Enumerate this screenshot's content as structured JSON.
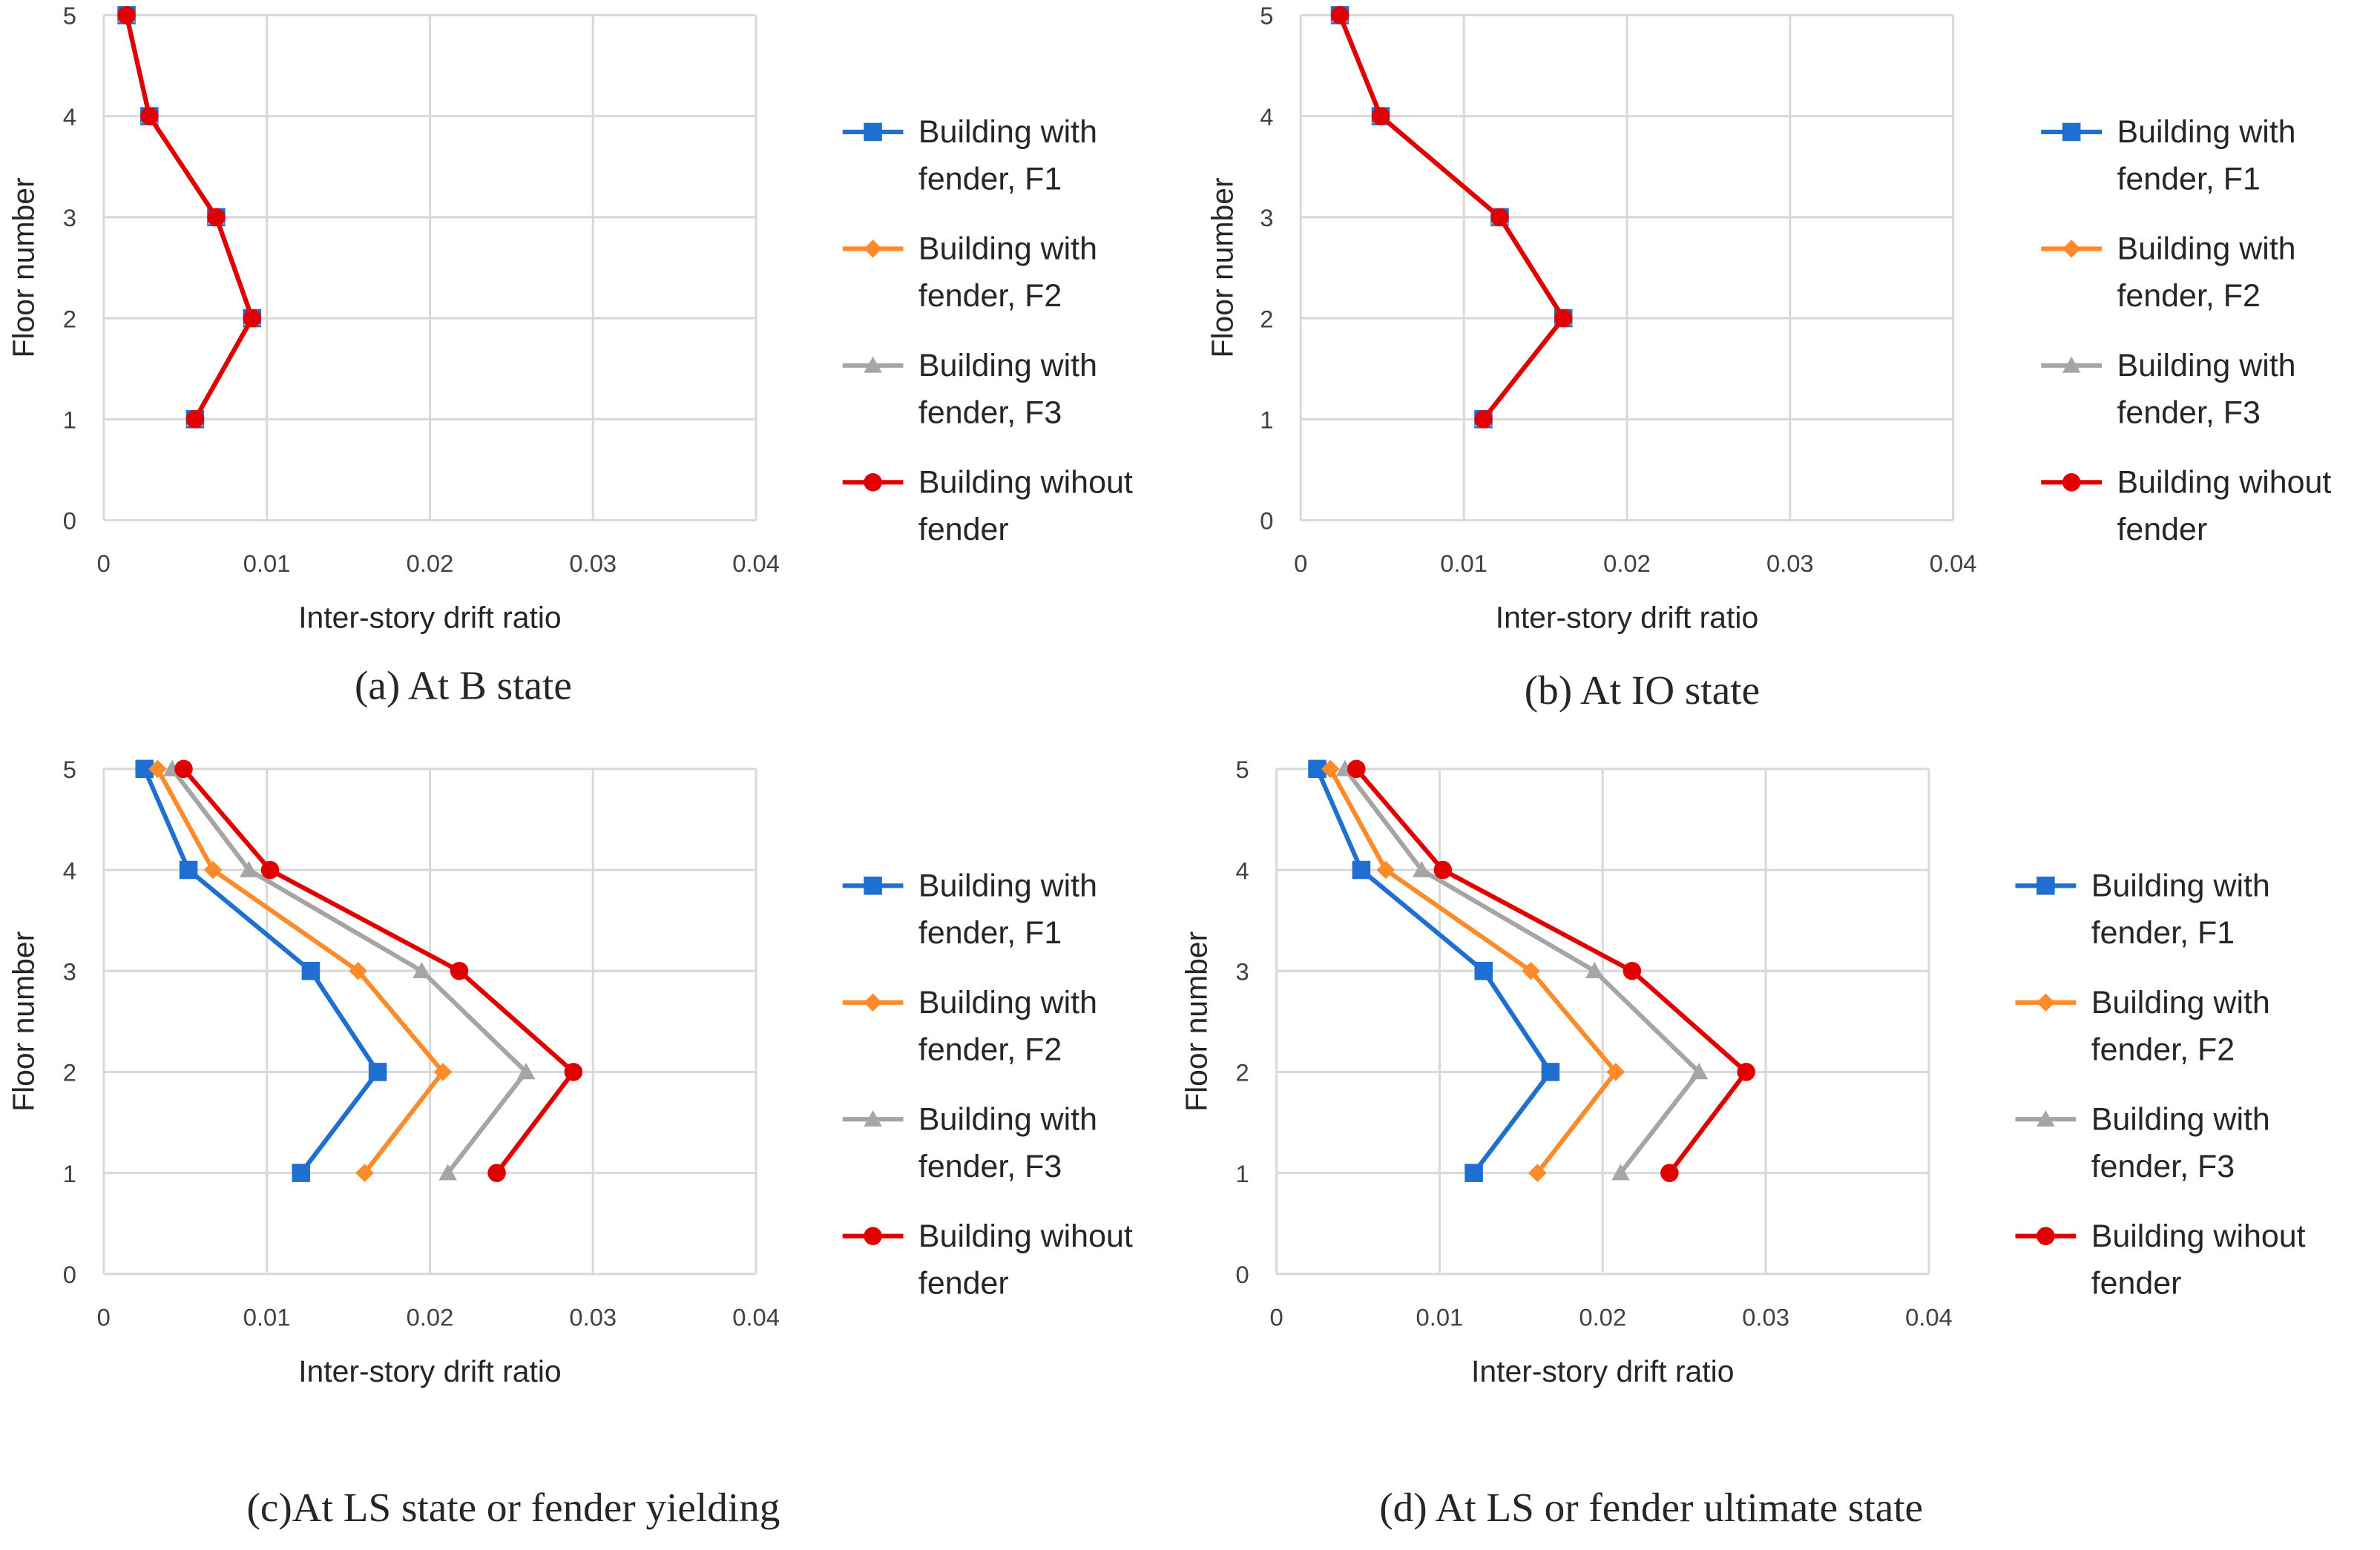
{
  "chart_data": [
    {
      "type": "line",
      "caption": "(a) At B state",
      "xlabel": "Inter-story drift ratio",
      "ylabel": "Floor number",
      "xlim": [
        0,
        0.04
      ],
      "ylim": [
        0,
        5
      ],
      "xticks": [
        "0",
        "0.01",
        "0.02",
        "0.03",
        "0.04"
      ],
      "yticks": [
        "0",
        "1",
        "2",
        "3",
        "4",
        "5"
      ],
      "grid": true,
      "legend": "right",
      "y": [
        1,
        2,
        3,
        4,
        5
      ],
      "series": [
        {
          "name": "Building with fender, F1",
          "lines": [
            "Building with",
            "fender, F1"
          ],
          "color": "#1f6fd0",
          "marker": "square",
          "x": [
            0.0056,
            0.0091,
            0.0069,
            0.0028,
            0.0014
          ]
        },
        {
          "name": "Building with fender, F2",
          "lines": [
            "Building with",
            "fender, F2"
          ],
          "color": "#ff8a2a",
          "marker": "diamond",
          "x": [
            0.0056,
            0.0091,
            0.0069,
            0.0028,
            0.0014
          ]
        },
        {
          "name": "Building with fender, F3",
          "lines": [
            "Building with",
            "fender, F3"
          ],
          "color": "#a5a5a5",
          "marker": "triangle",
          "x": [
            0.0056,
            0.0091,
            0.0069,
            0.0028,
            0.0014
          ]
        },
        {
          "name": "Building wihout fender",
          "lines": [
            "Building wihout",
            "fender"
          ],
          "color": "#e00000",
          "marker": "circle",
          "x": [
            0.0056,
            0.0091,
            0.0069,
            0.0028,
            0.0014
          ]
        }
      ]
    },
    {
      "type": "line",
      "caption": "(b) At IO state",
      "xlabel": "Inter-story drift ratio",
      "ylabel": "Floor number",
      "xlim": [
        0,
        0.04
      ],
      "ylim": [
        0,
        5
      ],
      "xticks": [
        "0",
        "0.01",
        "0.02",
        "0.03",
        "0.04"
      ],
      "yticks": [
        "0",
        "1",
        "2",
        "3",
        "4",
        "5"
      ],
      "grid": true,
      "legend": "right",
      "y": [
        1,
        2,
        3,
        4,
        5
      ],
      "series": [
        {
          "name": "Building with fender, F1",
          "lines": [
            "Building with",
            "fender, F1"
          ],
          "color": "#1f6fd0",
          "marker": "square",
          "x": [
            0.0112,
            0.0161,
            0.0122,
            0.0049,
            0.0024
          ]
        },
        {
          "name": "Building with fender, F2",
          "lines": [
            "Building with",
            "fender, F2"
          ],
          "color": "#ff8a2a",
          "marker": "diamond",
          "x": [
            0.0112,
            0.0161,
            0.0122,
            0.0049,
            0.0024
          ]
        },
        {
          "name": "Building with fender, F3",
          "lines": [
            "Building with",
            "fender, F3"
          ],
          "color": "#a5a5a5",
          "marker": "triangle",
          "x": [
            0.0112,
            0.0161,
            0.0122,
            0.0049,
            0.0024
          ]
        },
        {
          "name": "Building wihout fender",
          "lines": [
            "Building wihout",
            "fender"
          ],
          "color": "#e00000",
          "marker": "circle",
          "x": [
            0.0112,
            0.0161,
            0.0122,
            0.0049,
            0.0024
          ]
        }
      ]
    },
    {
      "type": "line",
      "caption": "(c)At LS state or fender yielding",
      "xlabel": "Inter-story drift ratio",
      "ylabel": "Floor number",
      "xlim": [
        0,
        0.04
      ],
      "ylim": [
        0,
        5
      ],
      "xticks": [
        "0",
        "0.01",
        "0.02",
        "0.03",
        "0.04"
      ],
      "yticks": [
        "0",
        "1",
        "2",
        "3",
        "4",
        "5"
      ],
      "grid": true,
      "legend": "right",
      "y": [
        1,
        2,
        3,
        4,
        5
      ],
      "series": [
        {
          "name": "Building with fender, F1",
          "lines": [
            "Building with",
            "fender, F1"
          ],
          "color": "#1f6fd0",
          "marker": "square",
          "x": [
            0.0121,
            0.0168,
            0.0127,
            0.0052,
            0.0025
          ]
        },
        {
          "name": "Building with fender, F2",
          "lines": [
            "Building with",
            "fender, F2"
          ],
          "color": "#ff8a2a",
          "marker": "diamond",
          "x": [
            0.016,
            0.0208,
            0.0156,
            0.0067,
            0.0033
          ]
        },
        {
          "name": "Building with fender, F3",
          "lines": [
            "Building with",
            "fender, F3"
          ],
          "color": "#a5a5a5",
          "marker": "triangle",
          "x": [
            0.0211,
            0.0259,
            0.0195,
            0.0089,
            0.0042
          ]
        },
        {
          "name": "Building wihout fender",
          "lines": [
            "Building wihout",
            "fender"
          ],
          "color": "#e00000",
          "marker": "circle",
          "x": [
            0.0241,
            0.0288,
            0.0218,
            0.0102,
            0.0049
          ]
        }
      ]
    },
    {
      "type": "line",
      "caption": "(d) At LS or fender ultimate state",
      "xlabel": "Inter-story drift ratio",
      "ylabel": "Floor number",
      "xlim": [
        0,
        0.04
      ],
      "ylim": [
        0,
        5
      ],
      "xticks": [
        "0",
        "0.01",
        "0.02",
        "0.03",
        "0.04"
      ],
      "yticks": [
        "0",
        "1",
        "2",
        "3",
        "4",
        "5"
      ],
      "grid": true,
      "legend": "right",
      "y": [
        1,
        2,
        3,
        4,
        5
      ],
      "series": [
        {
          "name": "Building with fender, F1",
          "lines": [
            "Building with",
            "fender, F1"
          ],
          "color": "#1f6fd0",
          "marker": "square",
          "x": [
            0.0121,
            0.0168,
            0.0127,
            0.0052,
            0.0025
          ]
        },
        {
          "name": "Building with fender, F2",
          "lines": [
            "Building with",
            "fender, F2"
          ],
          "color": "#ff8a2a",
          "marker": "diamond",
          "x": [
            0.016,
            0.0208,
            0.0156,
            0.0067,
            0.0033
          ]
        },
        {
          "name": "Building with fender, F3",
          "lines": [
            "Building with",
            "fender, F3"
          ],
          "color": "#a5a5a5",
          "marker": "triangle",
          "x": [
            0.0211,
            0.0259,
            0.0195,
            0.0089,
            0.0042
          ]
        },
        {
          "name": "Building wihout fender",
          "lines": [
            "Building wihout",
            "fender"
          ],
          "color": "#e00000",
          "marker": "circle",
          "x": [
            0.0241,
            0.0288,
            0.0218,
            0.0102,
            0.0049
          ]
        }
      ]
    }
  ]
}
